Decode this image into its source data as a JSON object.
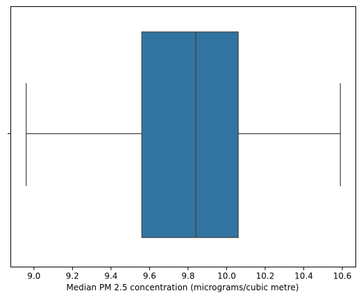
{
  "chart_data": {
    "type": "box",
    "orientation": "horizontal",
    "xlabel": "Median PM 2.5 concentration (micrograms/cubic metre)",
    "ylabel": "",
    "xlim": [
      8.88,
      10.67
    ],
    "xticks": [
      9.0,
      9.2,
      9.4,
      9.6,
      9.8,
      10.0,
      10.2,
      10.4,
      10.6
    ],
    "xtick_labels": [
      "9.0",
      "9.2",
      "9.4",
      "9.6",
      "9.8",
      "10.0",
      "10.2",
      "10.4",
      "10.6"
    ],
    "box": {
      "min": 8.96,
      "q1": 9.56,
      "median": 9.84,
      "q3": 10.06,
      "max": 10.59
    },
    "colors": {
      "box_fill": "#3274a1",
      "line": "#3f3f3f",
      "axis": "#000000"
    }
  }
}
